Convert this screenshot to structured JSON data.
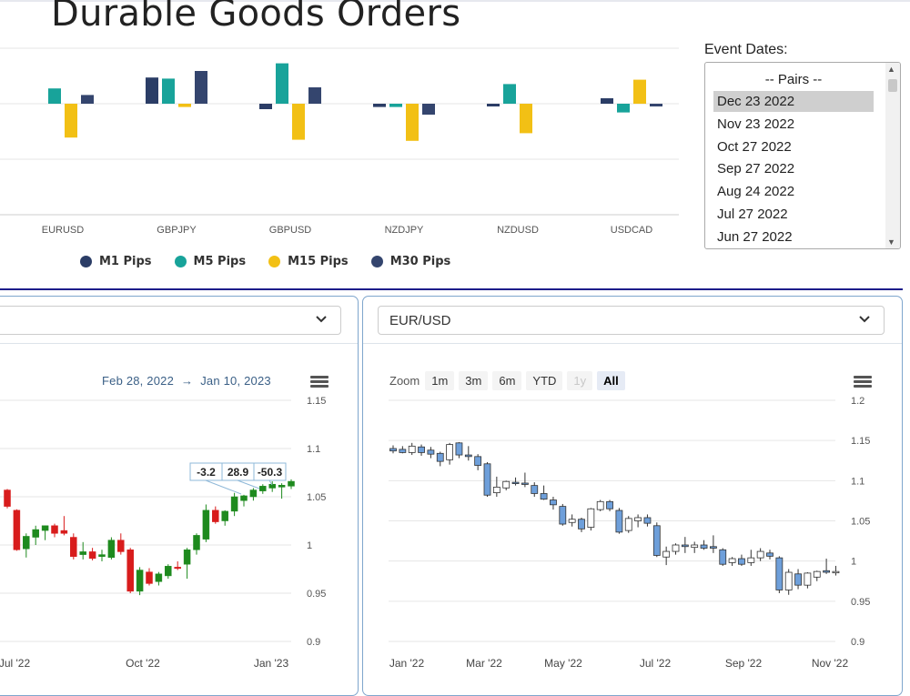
{
  "page": {
    "title": "Durable Goods Orders"
  },
  "event_dates": {
    "label": "Event Dates:",
    "options": [
      "-- Pairs --",
      "Dec 23 2022",
      "Nov 23 2022",
      "Oct 27 2022",
      "Sep 27 2022",
      "Aug 24 2022",
      "Jul 27 2022",
      "Jun 27 2022"
    ],
    "selected": "Dec 23 2022"
  },
  "left_panel": {
    "dropdown_value": "",
    "date_from": "Feb 28, 2022",
    "date_arrow": "→",
    "date_to": "Jan 10, 2023"
  },
  "right_panel": {
    "dropdown_value": "EUR/USD",
    "zoom": {
      "label": "Zoom",
      "buttons": [
        "1m",
        "3m",
        "6m",
        "YTD",
        "1y",
        "All"
      ],
      "active": "All",
      "disabled": [
        "1y"
      ]
    }
  },
  "colors": {
    "m1": "#2b3d66",
    "m5": "#18a39a",
    "m15": "#f2c015",
    "m30": "#34456e",
    "bull": "#1e8a1e",
    "bear": "#d81c1c",
    "candle_blue": "#6e9fda"
  },
  "chart_data": [
    {
      "type": "bar",
      "categories": [
        "EURUSD",
        "GBPJPY",
        "GBPUSD",
        "NZDJPY",
        "NZDUSD",
        "USDCAD"
      ],
      "series": [
        {
          "name": "M1 Pips",
          "values": [
            0,
            24,
            -5,
            -3,
            -1,
            5
          ]
        },
        {
          "name": "M5 Pips",
          "values": [
            14,
            23,
            37,
            -3,
            18,
            -8
          ]
        },
        {
          "name": "M15 Pips",
          "values": [
            -31,
            -3,
            -33,
            -34,
            -27,
            22
          ]
        },
        {
          "name": "M30 Pips",
          "values": [
            8,
            30,
            15,
            -10,
            0,
            -2
          ]
        }
      ],
      "grid": true,
      "legend_position": "bottom"
    },
    {
      "type": "candlestick",
      "y_ticks": [
        "1.15",
        "1.1",
        "1.05",
        "1",
        "0.95",
        "0.9"
      ],
      "x_ticks": [
        "Jul '22",
        "Oct '22",
        "Jan '23"
      ],
      "ylim": [
        0.9,
        1.15
      ],
      "annotations": [
        "-3.2",
        "28.9",
        "-50.3"
      ],
      "candles": [
        {
          "o": 1.057,
          "h": 1.058,
          "l": 1.038,
          "c": 1.04
        },
        {
          "o": 1.036,
          "h": 1.037,
          "l": 0.994,
          "c": 0.995
        },
        {
          "o": 0.996,
          "h": 1.012,
          "l": 0.987,
          "c": 1.009
        },
        {
          "o": 1.008,
          "h": 1.02,
          "l": 1.0,
          "c": 1.016
        },
        {
          "o": 1.015,
          "h": 1.02,
          "l": 1.005,
          "c": 1.02
        },
        {
          "o": 1.02,
          "h": 1.022,
          "l": 1.008,
          "c": 1.012
        },
        {
          "o": 1.015,
          "h": 1.03,
          "l": 1.01,
          "c": 1.012
        },
        {
          "o": 1.008,
          "h": 1.012,
          "l": 0.985,
          "c": 0.988
        },
        {
          "o": 0.99,
          "h": 1.003,
          "l": 0.985,
          "c": 0.993
        },
        {
          "o": 0.993,
          "h": 0.997,
          "l": 0.984,
          "c": 0.986
        },
        {
          "o": 0.988,
          "h": 0.995,
          "l": 0.983,
          "c": 0.99
        },
        {
          "o": 0.987,
          "h": 1.008,
          "l": 0.985,
          "c": 1.005
        },
        {
          "o": 1.005,
          "h": 1.012,
          "l": 0.99,
          "c": 0.993
        },
        {
          "o": 0.995,
          "h": 0.997,
          "l": 0.95,
          "c": 0.952
        },
        {
          "o": 0.952,
          "h": 0.977,
          "l": 0.948,
          "c": 0.974
        },
        {
          "o": 0.972,
          "h": 0.976,
          "l": 0.958,
          "c": 0.96
        },
        {
          "o": 0.962,
          "h": 0.972,
          "l": 0.958,
          "c": 0.97
        },
        {
          "o": 0.968,
          "h": 0.98,
          "l": 0.965,
          "c": 0.978
        },
        {
          "o": 0.977,
          "h": 0.983,
          "l": 0.974,
          "c": 0.976
        },
        {
          "o": 0.98,
          "h": 0.997,
          "l": 0.965,
          "c": 0.995
        },
        {
          "o": 0.995,
          "h": 1.012,
          "l": 0.99,
          "c": 1.01
        },
        {
          "o": 1.006,
          "h": 1.042,
          "l": 1.003,
          "c": 1.036
        },
        {
          "o": 1.036,
          "h": 1.04,
          "l": 1.022,
          "c": 1.024
        },
        {
          "o": 1.025,
          "h": 1.036,
          "l": 1.02,
          "c": 1.035
        },
        {
          "o": 1.035,
          "h": 1.054,
          "l": 1.03,
          "c": 1.05
        },
        {
          "o": 1.046,
          "h": 1.052,
          "l": 1.04,
          "c": 1.051
        },
        {
          "o": 1.05,
          "h": 1.059,
          "l": 1.046,
          "c": 1.057
        },
        {
          "o": 1.056,
          "h": 1.063,
          "l": 1.053,
          "c": 1.061
        },
        {
          "o": 1.059,
          "h": 1.066,
          "l": 1.055,
          "c": 1.063
        },
        {
          "o": 1.06,
          "h": 1.064,
          "l": 1.048,
          "c": 1.062
        },
        {
          "o": 1.061,
          "h": 1.068,
          "l": 1.058,
          "c": 1.066
        }
      ]
    },
    {
      "type": "candlestick",
      "y_ticks": [
        "1.2",
        "1.15",
        "1.1",
        "1.05",
        "1",
        "0.95",
        "0.9"
      ],
      "x_ticks": [
        "Jan '22",
        "Mar '22",
        "May '22",
        "Jul '22",
        "Sep '22",
        "Nov '22"
      ],
      "ylim": [
        0.9,
        1.2
      ],
      "candles": [
        {
          "o": 1.14,
          "h": 1.144,
          "l": 1.134,
          "c": 1.137
        },
        {
          "o": 1.139,
          "h": 1.143,
          "l": 1.134,
          "c": 1.135
        },
        {
          "o": 1.135,
          "h": 1.147,
          "l": 1.132,
          "c": 1.143
        },
        {
          "o": 1.142,
          "h": 1.145,
          "l": 1.131,
          "c": 1.135
        },
        {
          "o": 1.138,
          "h": 1.142,
          "l": 1.128,
          "c": 1.133
        },
        {
          "o": 1.134,
          "h": 1.136,
          "l": 1.118,
          "c": 1.124
        },
        {
          "o": 1.126,
          "h": 1.147,
          "l": 1.12,
          "c": 1.145
        },
        {
          "o": 1.147,
          "h": 1.148,
          "l": 1.128,
          "c": 1.132
        },
        {
          "o": 1.132,
          "h": 1.143,
          "l": 1.125,
          "c": 1.13
        },
        {
          "o": 1.13,
          "h": 1.133,
          "l": 1.113,
          "c": 1.119
        },
        {
          "o": 1.121,
          "h": 1.123,
          "l": 1.08,
          "c": 1.082
        },
        {
          "o": 1.085,
          "h": 1.105,
          "l": 1.08,
          "c": 1.092
        },
        {
          "o": 1.091,
          "h": 1.1,
          "l": 1.088,
          "c": 1.099
        },
        {
          "o": 1.098,
          "h": 1.104,
          "l": 1.094,
          "c": 1.097
        },
        {
          "o": 1.097,
          "h": 1.11,
          "l": 1.092,
          "c": 1.096
        },
        {
          "o": 1.094,
          "h": 1.098,
          "l": 1.08,
          "c": 1.084
        },
        {
          "o": 1.084,
          "h": 1.094,
          "l": 1.076,
          "c": 1.077
        },
        {
          "o": 1.076,
          "h": 1.08,
          "l": 1.064,
          "c": 1.07
        },
        {
          "o": 1.068,
          "h": 1.071,
          "l": 1.044,
          "c": 1.046
        },
        {
          "o": 1.048,
          "h": 1.058,
          "l": 1.043,
          "c": 1.052
        },
        {
          "o": 1.052,
          "h": 1.054,
          "l": 1.036,
          "c": 1.04
        },
        {
          "o": 1.042,
          "h": 1.066,
          "l": 1.038,
          "c": 1.065
        },
        {
          "o": 1.064,
          "h": 1.076,
          "l": 1.062,
          "c": 1.074
        },
        {
          "o": 1.074,
          "h": 1.076,
          "l": 1.062,
          "c": 1.065
        },
        {
          "o": 1.063,
          "h": 1.066,
          "l": 1.034,
          "c": 1.036
        },
        {
          "o": 1.038,
          "h": 1.056,
          "l": 1.035,
          "c": 1.053
        },
        {
          "o": 1.05,
          "h": 1.058,
          "l": 1.042,
          "c": 1.054
        },
        {
          "o": 1.054,
          "h": 1.058,
          "l": 1.043,
          "c": 1.047
        },
        {
          "o": 1.044,
          "h": 1.048,
          "l": 1.005,
          "c": 1.007
        },
        {
          "o": 1.005,
          "h": 1.018,
          "l": 0.995,
          "c": 1.012
        },
        {
          "o": 1.012,
          "h": 1.022,
          "l": 1.008,
          "c": 1.02
        },
        {
          "o": 1.02,
          "h": 1.03,
          "l": 1.01,
          "c": 1.018
        },
        {
          "o": 1.017,
          "h": 1.024,
          "l": 1.01,
          "c": 1.02
        },
        {
          "o": 1.02,
          "h": 1.026,
          "l": 1.014,
          "c": 1.016
        },
        {
          "o": 1.018,
          "h": 1.032,
          "l": 1.01,
          "c": 1.016
        },
        {
          "o": 1.014,
          "h": 1.016,
          "l": 0.994,
          "c": 0.996
        },
        {
          "o": 0.998,
          "h": 1.005,
          "l": 0.994,
          "c": 1.003
        },
        {
          "o": 1.003,
          "h": 1.008,
          "l": 0.994,
          "c": 0.996
        },
        {
          "o": 0.998,
          "h": 1.014,
          "l": 0.994,
          "c": 1.004
        },
        {
          "o": 1.004,
          "h": 1.016,
          "l": 1.0,
          "c": 1.012
        },
        {
          "o": 1.01,
          "h": 1.014,
          "l": 1.002,
          "c": 1.006
        },
        {
          "o": 1.004,
          "h": 1.006,
          "l": 0.96,
          "c": 0.964
        },
        {
          "o": 0.964,
          "h": 0.99,
          "l": 0.958,
          "c": 0.986
        },
        {
          "o": 0.984,
          "h": 0.99,
          "l": 0.965,
          "c": 0.97
        },
        {
          "o": 0.97,
          "h": 0.986,
          "l": 0.966,
          "c": 0.985
        },
        {
          "o": 0.98,
          "h": 0.988,
          "l": 0.975,
          "c": 0.987
        },
        {
          "o": 0.988,
          "h": 1.003,
          "l": 0.984,
          "c": 0.986
        },
        {
          "o": 0.986,
          "h": 0.994,
          "l": 0.982,
          "c": 0.987
        }
      ]
    }
  ]
}
